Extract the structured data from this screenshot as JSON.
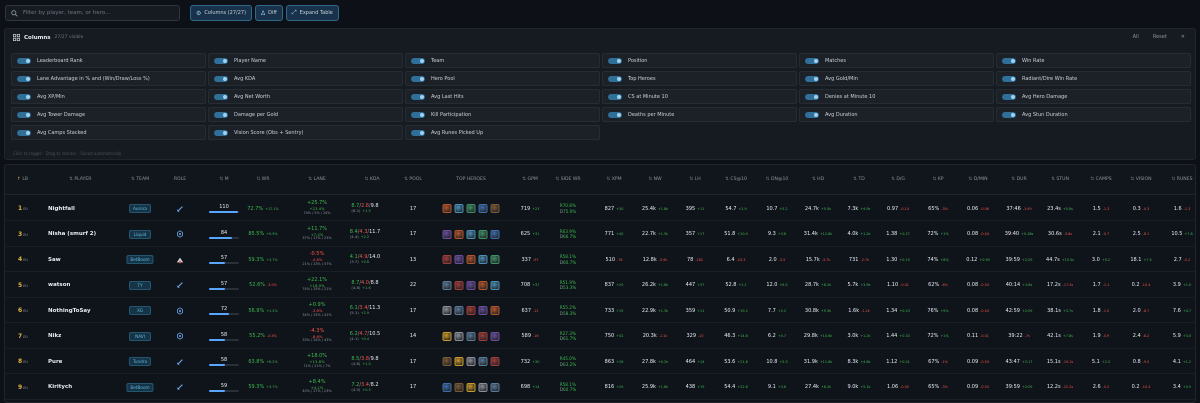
{
  "search": {
    "placeholder": "Filter by player, team, or hero..."
  },
  "toolbar": {
    "columns_label": "Columns (27/27)",
    "diff_label": "Diff",
    "expand_label": "Expand Table"
  },
  "columns_panel": {
    "title": "Columns",
    "subtitle": "27/27 visible",
    "all_label": "All",
    "reset_label": "Reset",
    "hint": "Click to toggle · Drag to reorder · Saved automatically",
    "items": [
      "Leaderboard Rank",
      "Player Name",
      "Team",
      "Position",
      "Matches",
      "Win Rate",
      "Lane Advantage in % and (Win/Draw/Loss %)",
      "Avg KDA",
      "Hero Pool",
      "Top Heroes",
      "Avg Gold/Min",
      "Radiant/Dire Win Rate",
      "Avg XP/Min",
      "Avg Net Worth",
      "Avg Last Hits",
      "CS at Minute 10",
      "Denies at Minute 10",
      "Avg Hero Damage",
      "Avg Tower Damage",
      "Damage per Gold",
      "Kill Participation",
      "Deaths per Minute",
      "Avg Duration",
      "Avg Stun Duration",
      "Avg Camps Stacked",
      "Vision Score (Obs + Sentry)",
      "Avg Runes Picked Up"
    ]
  },
  "table": {
    "headers": {
      "lb": "LB",
      "player": "PLAYER",
      "team": "TEAM",
      "role": "ROLE",
      "m": "M",
      "wr": "WR",
      "lane": "LANE",
      "kda": "KDA",
      "pool": "POOL",
      "top_heroes": "TOP HEROES",
      "gpm": "GPM",
      "side_wr": "SIDE WR",
      "xpm": "XPM",
      "nw": "NW",
      "lh": "LH",
      "cs10": "CS@10",
      "dn10": "DN@10",
      "hd": "HD",
      "td": "TD",
      "dg": "D/G",
      "kp": "KP",
      "dmin": "D/MIN",
      "dur": "DUR",
      "stun": "STUN",
      "camps": "CAMPS",
      "vision": "VISION",
      "runes": "RUNES"
    },
    "rows": [
      {
        "rank": "1",
        "rank_suf": "EU",
        "player": "Nightfall",
        "team": "Aurora",
        "role": "carry",
        "matches": "110",
        "mfill": 0.95,
        "wr": "72.7%",
        "wr_d": "+17.1%",
        "lane_a": "+25.7%",
        "lane_b": "+23.4%",
        "lane_c": "74% / 2% / 24%",
        "lane_neg": false,
        "kda_k": "8.7",
        "kda_d": "2.8",
        "kda_a": "9.8",
        "kda_r": "(6.2)",
        "kda_rd": "+1.5",
        "pool": "17",
        "gpm": "719",
        "gpm_d": "+23",
        "side_r": "R70.8%",
        "side_dl": "D",
        "side_d": "75.0%",
        "xpm": "827",
        "xpm_d": "+30",
        "nw": "25.4k",
        "nw_d": "+1.8k",
        "lh": "395",
        "lh_d": "+11",
        "cs10": "54.7",
        "cs10_d": "+2.9",
        "dn10": "10.7",
        "dn10_d": "+5.2",
        "hd": "24.7k",
        "hd_d": "+5.5k",
        "td": "7.3k",
        "td_d": "+4.9k",
        "dg": "0.97",
        "dg_d": "-0.14",
        "kp": "65%",
        "kp_d": "-3%",
        "dmin": "0.06",
        "dmin_d": "-0.06",
        "dur": "37:46",
        "dur_d": "-1:49",
        "stun": "23.4s",
        "stun_d": "+5.8s",
        "camps": "1.5",
        "camps_d": "-1.3",
        "vision": "0.3",
        "vision_d": "-0.3",
        "runes": "1.6",
        "runes_d": "-1.3"
      },
      {
        "rank": "3",
        "rank_suf": "EU",
        "player": "Nisha (smurf 2)",
        "team": "Liquid",
        "role": "mid",
        "matches": "84",
        "mfill": 0.75,
        "wr": "85.5%",
        "wr_d": "+9.9%",
        "lane_a": "+11.7%",
        "lane_b": "+7.4%",
        "lane_c": "37% / 17% / 23%",
        "lane_neg": false,
        "kda_k": "8.4",
        "kda_d": "4.3",
        "kda_a": "11.7",
        "kda_r": "(4.4)",
        "kda_rd": "+2.2",
        "pool": "17",
        "gpm": "625",
        "gpm_d": "+31",
        "side_r": "R63.9%",
        "side_dl": "D",
        "side_d": "66.7%",
        "xpm": "771",
        "xpm_d": "+40",
        "nw": "22.7k",
        "nw_d": "+1.5k",
        "lh": "357",
        "lh_d": "+17",
        "cs10": "51.8",
        "cs10_d": "+20.0",
        "dn10": "9.3",
        "dn10_d": "+3.8",
        "hd": "31.4k",
        "hd_d": "+12.8k",
        "td": "4.0k",
        "td_d": "+1.2k",
        "dg": "1.38",
        "dg_d": "+0.27",
        "kp": "72%",
        "kp_d": "+1%",
        "dmin": "0.08",
        "dmin_d": "-0.04",
        "dur": "39:40",
        "dur_d": "+0.18s",
        "stun": "30.6s",
        "stun_d": "-3.8s",
        "camps": "2.1",
        "camps_d": "-0.7",
        "vision": "2.5",
        "vision_d": "-8.1",
        "runes": "10.5",
        "runes_d": "+7.8"
      },
      {
        "rank": "4",
        "rank_suf": "EU",
        "player": "Saw",
        "team": "BetBoom",
        "role": "offlane",
        "matches": "57",
        "mfill": 0.52,
        "wr": "59.3%",
        "wr_d": "+3.7%",
        "lane_a": "-0.5%",
        "lane_b": "-4.8%",
        "lane_c": "21% / 23% / 57%",
        "lane_neg": true,
        "kda_k": "4.1",
        "kda_d": "4.9",
        "kda_a": "14.0",
        "kda_r": "(3.7)",
        "kda_rd": "+0.8",
        "pool": "13",
        "gpm": "337",
        "gpm_d": "-97",
        "side_r": "R58.1%",
        "side_dl": "D",
        "side_d": "60.7%",
        "xpm": "510",
        "xpm_d": "-78",
        "nw": "12.8k",
        "nw_d": "-5.9k",
        "lh": "78",
        "lh_d": "-182",
        "cs10": "6.4",
        "cs10_d": "-25.3",
        "dn10": "2.0",
        "dn10_d": "-3.5",
        "hd": "15.7k",
        "hd_d": "-3.7k",
        "td": "731",
        "td_d": "-2.7k",
        "dg": "1.30",
        "dg_d": "+0.19",
        "kp": "74%",
        "kp_d": "+8%",
        "dmin": "0.12",
        "dmin_d": "+0.90",
        "dur": "39:59",
        "dur_d": "+2:29",
        "stun": "44.7s",
        "stun_d": "+10.5s",
        "camps": "3.0",
        "camps_d": "+0.2",
        "vision": "18.1",
        "vision_d": "+7.5",
        "runes": "2.7",
        "runes_d": "-0.2"
      },
      {
        "rank": "5",
        "rank_suf": "EU",
        "player": "watson",
        "team": "TY",
        "role": "carry",
        "matches": "57",
        "mfill": 0.52,
        "wr": "52.6%",
        "wr_d": "-3.0%",
        "lane_a": "+22.1%",
        "lane_b": "+18.9%",
        "lane_c": "74% / 25% / 21%",
        "lane_neg": false,
        "kda_k": "8.7",
        "kda_d": "4.0",
        "kda_a": "8.8",
        "kda_r": "(4.8)",
        "kda_rd": "+1.6",
        "pool": "22",
        "gpm": "708",
        "gpm_d": "+37",
        "side_r": "R51.9%",
        "side_dl": "D",
        "side_d": "53.3%",
        "xpm": "837",
        "xpm_d": "+20",
        "nw": "26.2k",
        "nw_d": "+1.8k",
        "lh": "447",
        "lh_d": "+37",
        "cs10": "52.8",
        "cs10_d": "+1.1",
        "dn10": "12.0",
        "dn10_d": "+6.5",
        "hd": "28.7k",
        "hd_d": "+8.2k",
        "td": "5.7k",
        "td_d": "+3.9k",
        "dg": "1.10",
        "dg_d": "-0.01",
        "kp": "62%",
        "kp_d": "-6%",
        "dmin": "0.08",
        "dmin_d": "-0.04",
        "dur": "40:14",
        "dur_d": "+1:6s",
        "stun": "17.2s",
        "stun_d": "-17.3s",
        "camps": "1.7",
        "camps_d": "-1.1",
        "vision": "0.2",
        "vision_d": "-10.4",
        "runes": "3.9",
        "runes_d": "+1.0"
      },
      {
        "rank": "6",
        "rank_suf": "EU",
        "player": "NothingToSay",
        "team": "XG",
        "role": "mid",
        "matches": "72",
        "mfill": 0.68,
        "wr": "56.9%",
        "wr_d": "+1.2%",
        "lane_a": "+0.9%",
        "lane_b": "-3.8%",
        "lane_c": "34% / 25% / 41%",
        "lane_neg": false,
        "kda_k": "6.1",
        "kda_d": "3.4",
        "kda_a": "11.3",
        "kda_r": "(5.1)",
        "kda_rd": "+2.9",
        "pool": "17",
        "gpm": "637",
        "gpm_d": "-12",
        "side_r": "R55.2%",
        "side_dl": "D",
        "side_d": "58.3%",
        "xpm": "733",
        "xpm_d": "+15",
        "nw": "22.9k",
        "nw_d": "+1.3k",
        "lh": "359",
        "lh_d": "+11",
        "cs10": "50.9",
        "cs10_d": "+19.2",
        "dn10": "7.7",
        "dn10_d": "+2.2",
        "hd": "30.8k",
        "hd_d": "+9.3k",
        "td": "1.6k",
        "td_d": "-1.2k",
        "dg": "1.34",
        "dg_d": "+0.23",
        "kp": "76%",
        "kp_d": "+9%",
        "dmin": "0.08",
        "dmin_d": "-0.04",
        "dur": "42:59",
        "dur_d": "+2:29",
        "stun": "38.1s",
        "stun_d": "+3.7s",
        "camps": "1.8",
        "camps_d": "-1.0",
        "vision": "2.0",
        "vision_d": "-8.7",
        "runes": "7.6",
        "runes_d": "+4.7"
      },
      {
        "rank": "7",
        "rank_suf": "EU",
        "player": "Nikz",
        "team": "NAVI",
        "role": "mid",
        "matches": "58",
        "mfill": 0.53,
        "wr": "55.2%",
        "wr_d": "-0.4%",
        "lane_a": "-4.3%",
        "lane_b": "-8.6%",
        "lane_c": "33% / 24% / 43%",
        "lane_neg": true,
        "kda_k": "6.2",
        "kda_d": "4.7",
        "kda_a": "10.5",
        "kda_r": "(4.1)",
        "kda_rd": "+0.4",
        "pool": "14",
        "gpm": "589",
        "gpm_d": "-16",
        "side_r": "R27.3%",
        "side_dl": "D",
        "side_d": "61.7%",
        "xpm": "750",
        "xpm_d": "+32",
        "nw": "20.3k",
        "nw_d": "-1.1k",
        "lh": "329",
        "lh_d": "-10",
        "cs10": "46.3",
        "cs10_d": "+14.6",
        "dn10": "6.2",
        "dn10_d": "+0.7",
        "hd": "29.8k",
        "hd_d": "+10.6k",
        "td": "3.0k",
        "td_d": "+1.2k",
        "dg": "1.44",
        "dg_d": "+0.33",
        "kp": "72%",
        "kp_d": "+1%",
        "dmin": "0.11",
        "dmin_d": "-0.01",
        "dur": "39:22",
        "dur_d": "-7s",
        "stun": "42.1s",
        "stun_d": "+7.8s",
        "camps": "1.9",
        "camps_d": "-0.9",
        "vision": "2.4",
        "vision_d": "-8.2",
        "runes": "5.9",
        "runes_d": "+3.0"
      },
      {
        "rank": "8",
        "rank_suf": "EU",
        "player": "Pure",
        "team": "Tundra",
        "role": "carry",
        "matches": "58",
        "mfill": 0.53,
        "wr": "63.8%",
        "wr_d": "+8.2%",
        "lane_a": "+18.0%",
        "lane_b": "+13.8%",
        "lane_c": "71% / 21% / 7%",
        "lane_neg": false,
        "kda_k": "8.5",
        "kda_d": "3.8",
        "kda_a": "9.8",
        "kda_r": "(4.8)",
        "kda_rd": "+1.0",
        "pool": "17",
        "gpm": "732",
        "gpm_d": "+30",
        "side_r": "R45.0%",
        "side_dl": "D",
        "side_d": "63.2%",
        "xpm": "863",
        "xpm_d": "+26",
        "nw": "27.8k",
        "nw_d": "+0.2k",
        "lh": "464",
        "lh_d": "+14",
        "cs10": "53.6",
        "cs10_d": "+21.8",
        "dn10": "10.8",
        "dn10_d": "+5.3",
        "hd": "31.9k",
        "hd_d": "+11.6k",
        "td": "8.3k",
        "td_d": "+4.6k",
        "dg": "1.12",
        "dg_d": "+0.01",
        "kp": "67%",
        "kp_d": "-1%",
        "dmin": "0.09",
        "dmin_d": "-0.03",
        "dur": "43:47",
        "dur_d": "+2:17",
        "stun": "15.1s",
        "stun_d": "-19.1s",
        "camps": "5.1",
        "camps_d": "+2.3",
        "vision": "0.8",
        "vision_d": "-9.5",
        "runes": "4.1",
        "runes_d": "+1.2"
      },
      {
        "rank": "9",
        "rank_suf": "EU",
        "player": "Kiritych",
        "team": "BetBoom",
        "role": "carry",
        "matches": "59",
        "mfill": 0.54,
        "wr": "59.3%",
        "wr_d": "+3.7%",
        "lane_a": "+8.4%",
        "lane_b": "+4.1%",
        "lane_c": "40% / 27% / 23%",
        "lane_neg": false,
        "kda_k": "7.2",
        "kda_d": "3.4",
        "kda_a": "8.2",
        "kda_r": "(4.5)",
        "kda_rd": "+0.3",
        "pool": "17",
        "gpm": "698",
        "gpm_d": "+14",
        "side_r": "R58.1%",
        "side_dl": "D",
        "side_d": "60.7%",
        "xpm": "816",
        "xpm_d": "+20",
        "nw": "25.9k",
        "nw_d": "+1.6k",
        "lh": "438",
        "lh_d": "+19",
        "cs10": "54.4",
        "cs10_d": "+22.6",
        "dn10": "9.1",
        "dn10_d": "+3.6",
        "hd": "27.4k",
        "hd_d": "+6.2k",
        "td": "9.0k",
        "td_d": "+5.1k",
        "dg": "1.06",
        "dg_d": "-0.05",
        "kp": "65%",
        "kp_d": "-3%",
        "dmin": "0.09",
        "dmin_d": "-0.03",
        "dur": "39:59",
        "dur_d": "+2:29",
        "stun": "12.2s",
        "stun_d": "-22.2s",
        "camps": "2.6",
        "camps_d": "-0.2",
        "vision": "0.2",
        "vision_d": "-10.4",
        "runes": "3.4",
        "runes_d": "+0.5"
      }
    ]
  },
  "colors": {
    "bg": "#0d1117",
    "accent": "#58a6ff",
    "positive": "#3fb950",
    "negative": "#f85149",
    "gold": "#e3b341"
  }
}
